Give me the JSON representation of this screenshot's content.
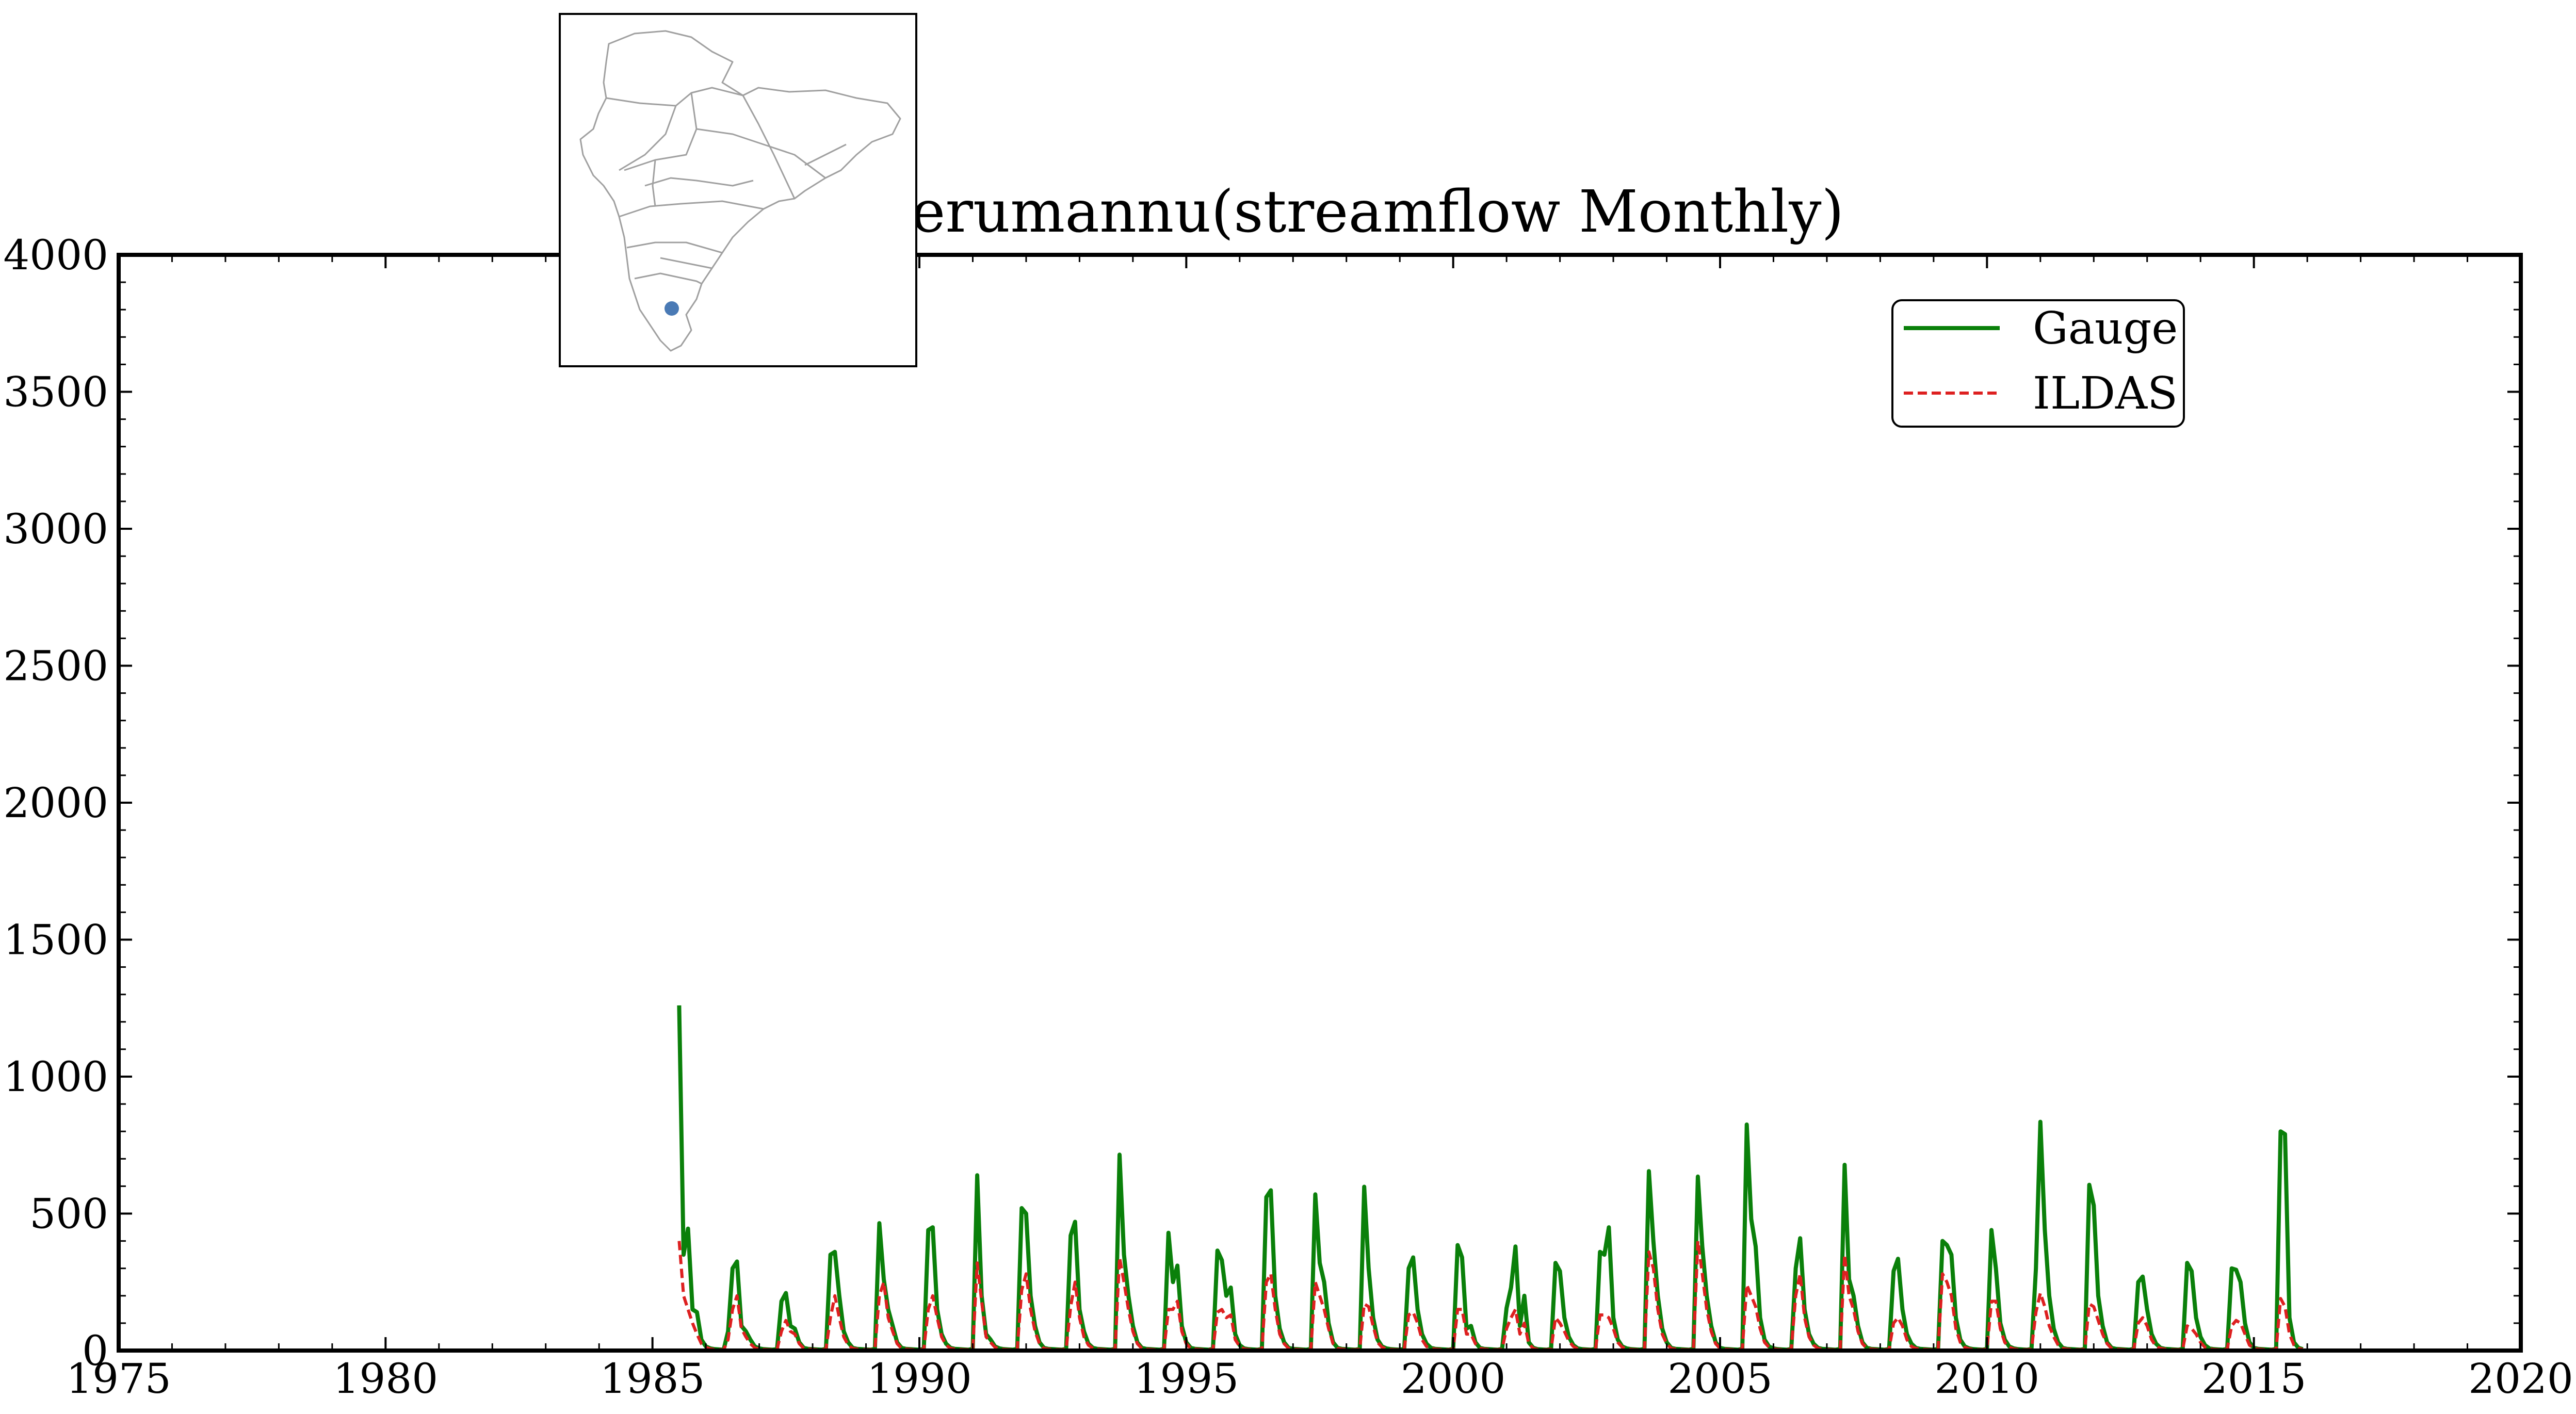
{
  "chart_data": {
    "type": "line",
    "title": "Perumannu(streamflow Monthly)",
    "xlabel": "",
    "ylabel": "",
    "xlim": [
      1975,
      2020
    ],
    "ylim": [
      0,
      4000
    ],
    "x_ticks": [
      "1975",
      "1980",
      "1985",
      "1990",
      "1995",
      "2000",
      "2005",
      "2010",
      "2015",
      "2020"
    ],
    "y_ticks": [
      "0",
      "500",
      "1000",
      "1500",
      "2000",
      "2500",
      "3000",
      "3500",
      "4000"
    ],
    "legend_position": "top-right",
    "grid": false,
    "inset": {
      "description": "India river basin locator map",
      "marker_color": "#4a7ab5"
    },
    "series": [
      {
        "name": "Gauge",
        "color": "#0a800a",
        "style": "solid",
        "start": 1985.5,
        "step": 0.0833333,
        "values": [
          1260,
          350,
          445,
          150,
          140,
          40,
          15,
          8,
          5,
          4,
          3,
          70,
          300,
          325,
          90,
          70,
          40,
          15,
          8,
          5,
          4,
          3,
          5,
          180,
          210,
          90,
          80,
          30,
          10,
          6,
          5,
          4,
          3,
          6,
          350,
          360,
          200,
          70,
          30,
          10,
          6,
          5,
          4,
          3,
          6,
          465,
          260,
          150,
          90,
          30,
          10,
          6,
          5,
          4,
          3,
          6,
          440,
          450,
          150,
          60,
          25,
          10,
          6,
          5,
          4,
          3,
          6,
          640,
          200,
          60,
          40,
          15,
          8,
          5,
          4,
          3,
          6,
          520,
          500,
          200,
          90,
          30,
          10,
          6,
          5,
          4,
          3,
          6,
          420,
          470,
          150,
          70,
          25,
          10,
          6,
          5,
          4,
          3,
          6,
          715,
          350,
          200,
          90,
          30,
          10,
          6,
          5,
          4,
          3,
          6,
          430,
          250,
          310,
          90,
          30,
          10,
          6,
          5,
          4,
          3,
          6,
          365,
          330,
          200,
          230,
          60,
          20,
          8,
          5,
          4,
          3,
          6,
          560,
          585,
          200,
          80,
          30,
          10,
          6,
          5,
          4,
          3,
          6,
          570,
          320,
          250,
          100,
          30,
          10,
          6,
          5,
          4,
          3,
          6,
          598,
          300,
          120,
          40,
          15,
          8,
          5,
          4,
          3,
          6,
          300,
          340,
          150,
          60,
          25,
          10,
          6,
          5,
          4,
          3,
          6,
          385,
          340,
          80,
          90,
          30,
          10,
          6,
          5,
          4,
          3,
          6,
          155,
          230,
          380,
          90,
          200,
          30,
          10,
          5,
          4,
          3,
          6,
          320,
          290,
          120,
          50,
          20,
          8,
          5,
          4,
          3,
          6,
          360,
          350,
          450,
          120,
          40,
          15,
          8,
          5,
          4,
          3,
          6,
          655,
          400,
          200,
          80,
          30,
          10,
          6,
          5,
          4,
          3,
          6,
          635,
          380,
          200,
          90,
          30,
          10,
          6,
          5,
          4,
          3,
          6,
          825,
          480,
          380,
          120,
          40,
          15,
          8,
          5,
          4,
          3,
          6,
          300,
          410,
          150,
          60,
          25,
          10,
          6,
          5,
          4,
          3,
          6,
          678,
          260,
          200,
          90,
          30,
          10,
          6,
          5,
          4,
          3,
          6,
          290,
          335,
          150,
          60,
          25,
          10,
          6,
          5,
          4,
          3,
          6,
          400,
          385,
          350,
          120,
          40,
          15,
          8,
          5,
          4,
          3,
          6,
          440,
          300,
          100,
          40,
          15,
          8,
          5,
          4,
          3,
          6,
          300,
          835,
          440,
          200,
          80,
          30,
          10,
          6,
          5,
          4,
          3,
          6,
          605,
          530,
          200,
          90,
          30,
          10,
          6,
          5,
          4,
          3,
          6,
          250,
          270,
          150,
          60,
          25,
          10,
          6,
          5,
          4,
          3,
          6,
          320,
          290,
          120,
          50,
          20,
          8,
          5,
          4,
          3,
          6,
          300,
          295,
          250,
          100,
          30,
          10,
          6,
          5,
          4,
          3,
          6,
          800,
          790,
          120,
          30,
          10,
          5
        ]
      },
      {
        "name": "ILDAS",
        "color": "#dd2020",
        "style": "dashed",
        "start": 1985.5,
        "step": 0.0833333,
        "values": [
          400,
          200,
          150,
          100,
          60,
          25,
          12,
          6,
          4,
          3,
          3,
          40,
          150,
          200,
          80,
          50,
          25,
          10,
          5,
          4,
          3,
          3,
          4,
          70,
          110,
          70,
          60,
          25,
          8,
          5,
          4,
          3,
          3,
          5,
          120,
          200,
          120,
          50,
          20,
          8,
          5,
          4,
          3,
          3,
          5,
          200,
          250,
          120,
          70,
          25,
          8,
          5,
          4,
          3,
          3,
          5,
          150,
          200,
          120,
          50,
          20,
          8,
          5,
          4,
          3,
          3,
          5,
          320,
          180,
          50,
          30,
          12,
          6,
          4,
          3,
          3,
          5,
          220,
          280,
          150,
          70,
          25,
          8,
          5,
          4,
          3,
          3,
          5,
          160,
          250,
          120,
          50,
          20,
          8,
          5,
          4,
          3,
          3,
          5,
          340,
          250,
          150,
          70,
          25,
          8,
          5,
          4,
          3,
          3,
          5,
          150,
          150,
          180,
          70,
          25,
          8,
          5,
          4,
          3,
          3,
          5,
          140,
          150,
          120,
          130,
          40,
          15,
          6,
          4,
          3,
          3,
          5,
          250,
          280,
          150,
          60,
          25,
          8,
          5,
          4,
          3,
          3,
          5,
          250,
          200,
          150,
          80,
          25,
          8,
          5,
          4,
          3,
          3,
          5,
          170,
          160,
          90,
          30,
          12,
          6,
          4,
          3,
          3,
          5,
          130,
          140,
          100,
          40,
          15,
          8,
          5,
          4,
          3,
          3,
          5,
          150,
          150,
          60,
          60,
          25,
          8,
          5,
          4,
          3,
          3,
          5,
          80,
          120,
          150,
          60,
          100,
          25,
          8,
          4,
          3,
          3,
          5,
          120,
          100,
          70,
          35,
          15,
          6,
          4,
          3,
          3,
          5,
          130,
          130,
          120,
          80,
          30,
          12,
          6,
          4,
          3,
          3,
          5,
          360,
          300,
          150,
          60,
          25,
          8,
          5,
          4,
          3,
          3,
          5,
          400,
          280,
          150,
          70,
          25,
          8,
          5,
          4,
          3,
          3,
          5,
          240,
          200,
          160,
          80,
          30,
          12,
          6,
          4,
          3,
          3,
          5,
          200,
          280,
          120,
          50,
          20,
          8,
          5,
          4,
          3,
          3,
          5,
          350,
          200,
          150,
          70,
          25,
          8,
          5,
          4,
          3,
          3,
          5,
          100,
          120,
          90,
          40,
          15,
          8,
          5,
          4,
          3,
          3,
          5,
          280,
          250,
          200,
          80,
          30,
          12,
          6,
          4,
          3,
          3,
          5,
          180,
          180,
          80,
          30,
          12,
          6,
          4,
          3,
          3,
          5,
          140,
          210,
          160,
          90,
          50,
          20,
          8,
          5,
          4,
          3,
          3,
          5,
          170,
          160,
          110,
          60,
          25,
          8,
          5,
          4,
          3,
          3,
          5,
          100,
          120,
          90,
          40,
          15,
          8,
          5,
          4,
          3,
          3,
          5,
          90,
          80,
          60,
          30,
          12,
          6,
          4,
          3,
          3,
          5,
          90,
          110,
          100,
          60,
          20,
          8,
          5,
          4,
          3,
          3,
          5,
          190,
          160,
          60,
          20,
          8,
          4
        ]
      }
    ]
  }
}
